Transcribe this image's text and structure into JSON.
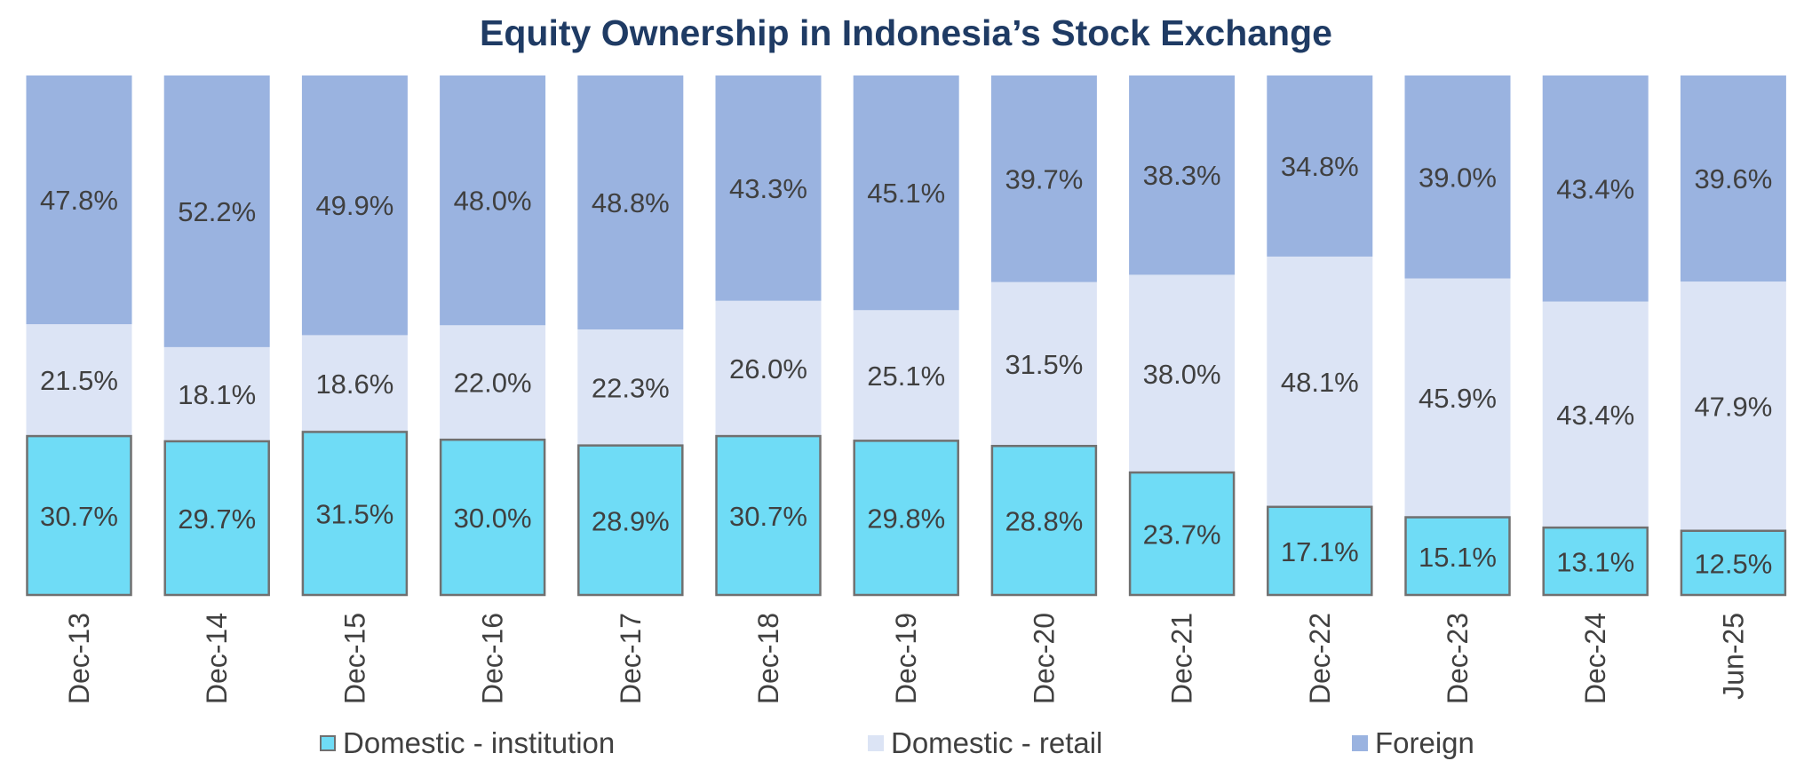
{
  "chart_data": {
    "type": "bar",
    "stacked": true,
    "normalized": true,
    "title": "Equity Ownership in Indonesia’s Stock Exchange",
    "xlabel": "",
    "ylabel": "",
    "ylim": [
      0,
      100
    ],
    "grid": false,
    "legend_position": "bottom",
    "categories": [
      "Dec-13",
      "Dec-14",
      "Dec-15",
      "Dec-16",
      "Dec-17",
      "Dec-18",
      "Dec-19",
      "Dec-20",
      "Dec-21",
      "Dec-22",
      "Dec-23",
      "Dec-24",
      "Jun-25"
    ],
    "series": [
      {
        "name": "Domestic - institution",
        "color": "#6fdcf6",
        "border": "#707070",
        "values": [
          30.7,
          29.7,
          31.5,
          30.0,
          28.9,
          30.7,
          29.8,
          28.8,
          23.7,
          17.1,
          15.1,
          13.1,
          12.5
        ],
        "labels": [
          "30.7%",
          "29.7%",
          "31.5%",
          "30.0%",
          "28.9%",
          "30.7%",
          "29.8%",
          "28.8%",
          "23.7%",
          "17.1%",
          "15.1%",
          "13.1%",
          "12.5%"
        ]
      },
      {
        "name": "Domestic - retail",
        "color": "#dce4f5",
        "values": [
          21.5,
          18.1,
          18.6,
          22.0,
          22.3,
          26.0,
          25.1,
          31.5,
          38.0,
          48.1,
          45.9,
          43.4,
          47.9
        ],
        "labels": [
          "21.5%",
          "18.1%",
          "18.6%",
          "22.0%",
          "22.3%",
          "26.0%",
          "25.1%",
          "31.5%",
          "38.0%",
          "48.1%",
          "45.9%",
          "43.4%",
          "47.9%"
        ]
      },
      {
        "name": "Foreign",
        "color": "#9ab3e0",
        "values": [
          47.8,
          52.2,
          49.9,
          48.0,
          48.8,
          43.3,
          45.1,
          39.7,
          38.3,
          34.8,
          39.0,
          43.4,
          39.6
        ],
        "labels": [
          "47.8%",
          "52.2%",
          "49.9%",
          "48.0%",
          "48.8%",
          "43.3%",
          "45.1%",
          "39.7%",
          "38.3%",
          "34.8%",
          "39.0%",
          "43.4%",
          "39.6%"
        ]
      }
    ]
  }
}
